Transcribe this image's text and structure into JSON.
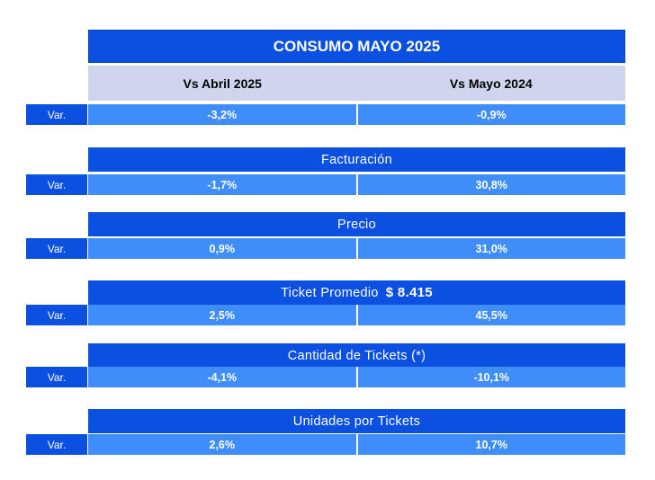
{
  "title": "CONSUMO MAYO 2025",
  "columns": [
    "Vs Abril 2025",
    "Vs Mayo 2024"
  ],
  "var_label": "Var.",
  "summary_row": {
    "values": [
      "-3,2%",
      "-0,9%"
    ]
  },
  "sections": [
    {
      "heading": "Facturación",
      "amount": "",
      "values": [
        "-1,7%",
        "30,8%"
      ]
    },
    {
      "heading": "Precio",
      "amount": "",
      "values": [
        "0,9%",
        "31,0%"
      ]
    },
    {
      "heading": "Ticket Promedio",
      "amount": "$ 8.415",
      "values": [
        "2,5%",
        "45,5%"
      ]
    },
    {
      "heading": "Cantidad de Tickets (*)",
      "amount": "",
      "values": [
        "-4,1%",
        "-10,1%"
      ]
    },
    {
      "heading": "Unidades por Tickets",
      "amount": "",
      "values": [
        "2,6%",
        "10,7%"
      ]
    }
  ],
  "colors": {
    "header_blue": "#0b50e0",
    "cell_blue": "#3f8df8",
    "subheader_gray": "#cfd5ec"
  }
}
